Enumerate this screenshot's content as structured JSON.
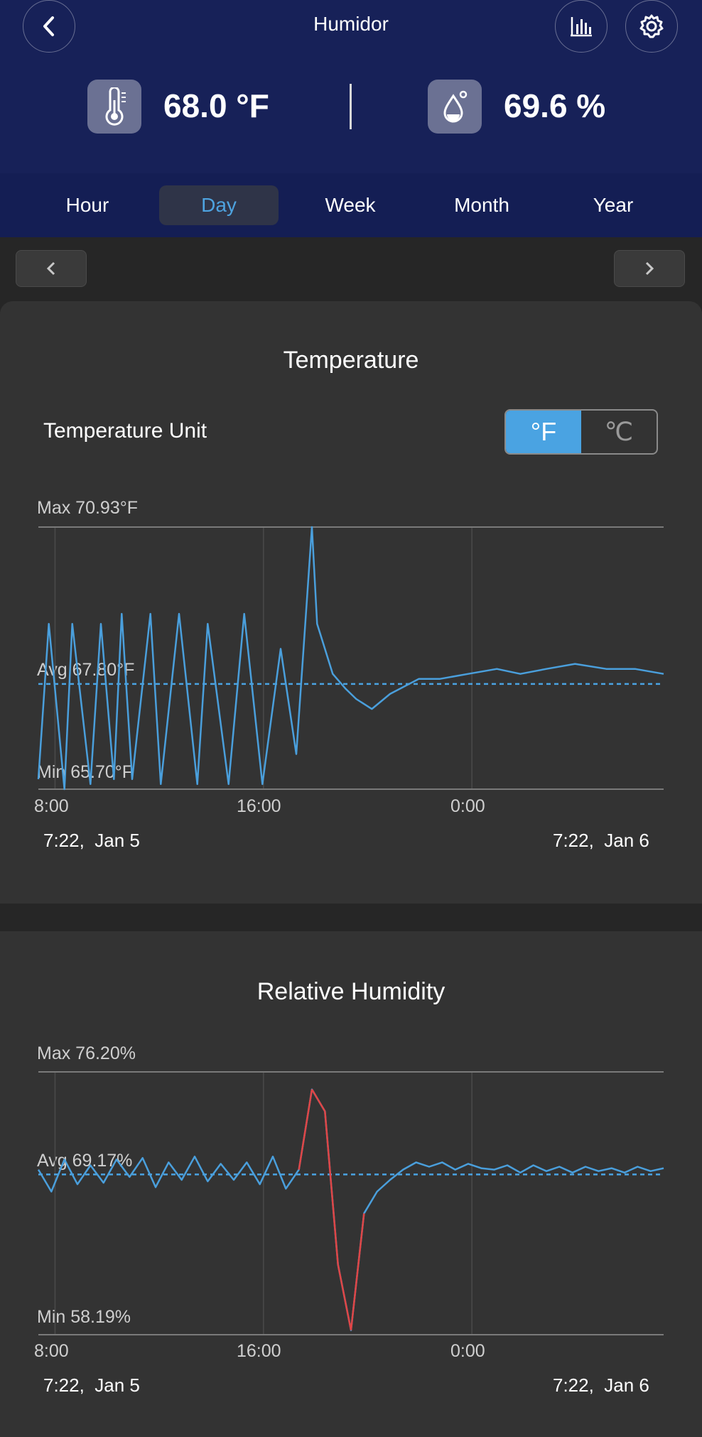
{
  "header": {
    "title": "Humidor",
    "temperature": "68.0 °F",
    "humidity": "69.6 %"
  },
  "icons": {
    "back": "chevron-left-icon",
    "chart": "bar-chart-icon",
    "settings": "gear-icon",
    "thermometer": "thermometer-icon",
    "droplet": "droplet-icon"
  },
  "tabs": [
    {
      "label": "Hour",
      "active": false
    },
    {
      "label": "Day",
      "active": true
    },
    {
      "label": "Week",
      "active": false
    },
    {
      "label": "Month",
      "active": false
    },
    {
      "label": "Year",
      "active": false
    }
  ],
  "temperature_card": {
    "title": "Temperature",
    "unit_label": "Temperature Unit",
    "unit_options": [
      "°F",
      "℃"
    ],
    "selected_unit": "°F",
    "max_label": "Max 70.93°F",
    "avg_label": "Avg 67.80°F",
    "min_label": "Min 65.70°F",
    "x_ticks": [
      "8:00",
      "16:00",
      "0:00"
    ],
    "range_start": "7:22,  Jan 5",
    "range_end": "7:22,  Jan 6"
  },
  "humidity_card": {
    "title": "Relative Humidity",
    "max_label": "Max 76.20%",
    "avg_label": "Avg 69.17%",
    "min_label": "Min 58.19%",
    "x_ticks": [
      "8:00",
      "16:00",
      "0:00"
    ],
    "range_start": "7:22,  Jan 5",
    "range_end": "7:22,  Jan 6"
  },
  "colors": {
    "header_bg": "#172158",
    "accent": "#4aa3e2",
    "line": "#4a9fdc",
    "alert_line": "#e04545"
  },
  "chart_data": [
    {
      "type": "line",
      "title": "Temperature",
      "ylim": [
        65.7,
        70.93
      ],
      "avg": 67.8,
      "x_ticks": [
        "8:00",
        "16:00",
        "0:00"
      ],
      "x_hours": [
        0,
        0.4,
        1.0,
        1.3,
        2.0,
        2.4,
        2.9,
        3.2,
        3.6,
        4.3,
        4.7,
        5.4,
        6.1,
        6.5,
        7.3,
        7.9,
        8.6,
        9.3,
        9.9,
        10.5,
        10.7,
        11.3,
        11.8,
        12.2,
        12.8,
        13.5,
        14.6,
        15.4,
        16.5,
        17.6,
        18.5,
        19.5,
        20.6,
        21.8,
        22.9,
        24.0
      ],
      "y": [
        65.9,
        69.0,
        65.7,
        69.0,
        65.8,
        69.0,
        65.9,
        69.2,
        65.9,
        69.2,
        65.8,
        69.2,
        65.8,
        69.0,
        65.8,
        69.2,
        65.8,
        68.5,
        66.4,
        70.93,
        69.0,
        68.0,
        67.7,
        67.5,
        67.3,
        67.6,
        67.9,
        67.9,
        68.0,
        68.1,
        68.0,
        68.1,
        68.2,
        68.1,
        68.1,
        68.0
      ]
    },
    {
      "type": "line",
      "title": "Relative Humidity",
      "ylim": [
        58.19,
        76.2
      ],
      "avg": 69.17,
      "x_ticks": [
        "8:00",
        "16:00",
        "0:00"
      ],
      "x_hours": [
        0,
        0.5,
        1.0,
        1.5,
        2.0,
        2.5,
        3.0,
        3.5,
        4.0,
        4.5,
        5.0,
        5.5,
        6.0,
        6.5,
        7.0,
        7.5,
        8.0,
        8.5,
        9.0,
        9.5,
        10.0,
        10.5,
        11.0,
        11.5,
        12.0,
        12.5,
        13.0,
        13.5,
        14.0,
        14.5,
        15.0,
        15.5,
        16.0,
        16.5,
        17.0,
        17.5,
        18.0,
        18.5,
        19.0,
        19.5,
        20.0,
        20.5,
        21.0,
        21.5,
        22.0,
        22.5,
        23.0,
        23.5,
        24.0
      ],
      "y": [
        69.5,
        68.0,
        70.2,
        68.5,
        69.8,
        68.6,
        70.2,
        69.0,
        70.3,
        68.3,
        70.0,
        68.8,
        70.4,
        68.7,
        69.9,
        68.8,
        70.0,
        68.5,
        70.4,
        68.2,
        69.5,
        75.0,
        73.5,
        63.0,
        58.5,
        66.5,
        68.0,
        68.8,
        69.5,
        70.0,
        69.7,
        70.0,
        69.5,
        69.9,
        69.6,
        69.5,
        69.8,
        69.3,
        69.8,
        69.4,
        69.7,
        69.3,
        69.7,
        69.4,
        69.6,
        69.3,
        69.7,
        69.4,
        69.6
      ]
    }
  ]
}
